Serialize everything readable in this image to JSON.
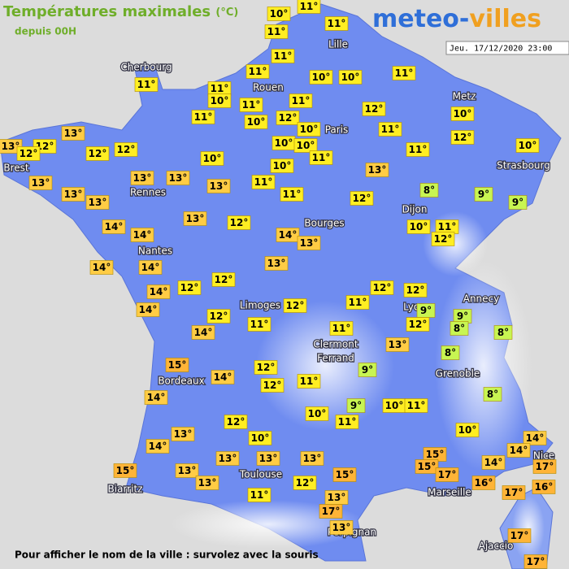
{
  "header": {
    "title": "Températures maximales",
    "unit": "(°C)",
    "subtitle": "depuis 00H"
  },
  "logo": {
    "part1": "meteo-",
    "part2": "villes"
  },
  "timestamp": "Jeu. 17/12/2020 23:00",
  "cities": [
    "Cherbourg",
    "Rouen",
    "Lille",
    "Metz",
    "Paris",
    "Strasbourg",
    "Brest",
    "Rennes",
    "Dijon",
    "Bourges",
    "Nantes",
    "Annecy",
    "Lyon",
    "Limoges",
    "Clermont",
    "Ferrand",
    "Grenoble",
    "Bordeaux",
    "Nice",
    "Toulouse",
    "Biarritz",
    "Marseille",
    "Perpignan",
    "Ajaccio"
  ],
  "temperatures": [
    {
      "value": 11,
      "label": "11°"
    },
    {
      "value": 10,
      "label": "10°"
    },
    {
      "value": 11,
      "label": "11°"
    },
    {
      "value": 11,
      "label": "11°"
    },
    {
      "value": 11,
      "label": "11°"
    },
    {
      "value": 11,
      "label": "11°"
    },
    {
      "value": 10,
      "label": "10°"
    },
    {
      "value": 10,
      "label": "10°"
    },
    {
      "value": 11,
      "label": "11°"
    },
    {
      "value": 11,
      "label": "11°"
    },
    {
      "value": 11,
      "label": "11°"
    },
    {
      "value": 10,
      "label": "10°"
    },
    {
      "value": 11,
      "label": "11°"
    },
    {
      "value": 11,
      "label": "11°"
    },
    {
      "value": 12,
      "label": "12°"
    },
    {
      "value": 10,
      "label": "10°"
    },
    {
      "value": 11,
      "label": "11°"
    },
    {
      "value": 10,
      "label": "10°"
    },
    {
      "value": 12,
      "label": "12°"
    },
    {
      "value": 10,
      "label": "10°"
    },
    {
      "value": 11,
      "label": "11°"
    },
    {
      "value": 12,
      "label": "12°"
    },
    {
      "value": 13,
      "label": "13°"
    },
    {
      "value": 13,
      "label": "13°"
    },
    {
      "value": 12,
      "label": "12°"
    },
    {
      "value": 12,
      "label": "12°"
    },
    {
      "value": 12,
      "label": "12°"
    },
    {
      "value": 12,
      "label": "12°"
    },
    {
      "value": 10,
      "label": "10°"
    },
    {
      "value": 10,
      "label": "10°"
    },
    {
      "value": 11,
      "label": "11°"
    },
    {
      "value": 10,
      "label": "10°"
    },
    {
      "value": 10,
      "label": "10°"
    },
    {
      "value": 11,
      "label": "11°"
    },
    {
      "value": 10,
      "label": "10°"
    },
    {
      "value": 13,
      "label": "13°"
    },
    {
      "value": 13,
      "label": "13°"
    },
    {
      "value": 13,
      "label": "13°"
    },
    {
      "value": 13,
      "label": "13°"
    },
    {
      "value": 13,
      "label": "13°"
    },
    {
      "value": 11,
      "label": "11°"
    },
    {
      "value": 13,
      "label": "13°"
    },
    {
      "value": 13,
      "label": "13°"
    },
    {
      "value": 11,
      "label": "11°"
    },
    {
      "value": 12,
      "label": "12°"
    },
    {
      "value": 8,
      "label": "8°"
    },
    {
      "value": 9,
      "label": "9°"
    },
    {
      "value": 9,
      "label": "9°"
    },
    {
      "value": 13,
      "label": "13°"
    },
    {
      "value": 12,
      "label": "12°"
    },
    {
      "value": 14,
      "label": "14°"
    },
    {
      "value": 14,
      "label": "14°"
    },
    {
      "value": 14,
      "label": "14°"
    },
    {
      "value": 13,
      "label": "13°"
    },
    {
      "value": 10,
      "label": "10°"
    },
    {
      "value": 11,
      "label": "11°"
    },
    {
      "value": 12,
      "label": "12°"
    },
    {
      "value": 14,
      "label": "14°"
    },
    {
      "value": 14,
      "label": "14°"
    },
    {
      "value": 13,
      "label": "13°"
    },
    {
      "value": 14,
      "label": "14°"
    },
    {
      "value": 12,
      "label": "12°"
    },
    {
      "value": 12,
      "label": "12°"
    },
    {
      "value": 12,
      "label": "12°"
    },
    {
      "value": 12,
      "label": "12°"
    },
    {
      "value": 14,
      "label": "14°"
    },
    {
      "value": 12,
      "label": "12°"
    },
    {
      "value": 11,
      "label": "11°"
    },
    {
      "value": 9,
      "label": "9°"
    },
    {
      "value": 9,
      "label": "9°"
    },
    {
      "value": 12,
      "label": "12°"
    },
    {
      "value": 14,
      "label": "14°"
    },
    {
      "value": 11,
      "label": "11°"
    },
    {
      "value": 11,
      "label": "11°"
    },
    {
      "value": 12,
      "label": "12°"
    },
    {
      "value": 8,
      "label": "8°"
    },
    {
      "value": 8,
      "label": "8°"
    },
    {
      "value": 13,
      "label": "13°"
    },
    {
      "value": 8,
      "label": "8°"
    },
    {
      "value": 15,
      "label": "15°"
    },
    {
      "value": 12,
      "label": "12°"
    },
    {
      "value": 9,
      "label": "9°"
    },
    {
      "value": 14,
      "label": "14°"
    },
    {
      "value": 12,
      "label": "12°"
    },
    {
      "value": 11,
      "label": "11°"
    },
    {
      "value": 14,
      "label": "14°"
    },
    {
      "value": 8,
      "label": "8°"
    },
    {
      "value": 9,
      "label": "9°"
    },
    {
      "value": 10,
      "label": "10°"
    },
    {
      "value": 11,
      "label": "11°"
    },
    {
      "value": 10,
      "label": "10°"
    },
    {
      "value": 12,
      "label": "12°"
    },
    {
      "value": 11,
      "label": "11°"
    },
    {
      "value": 10,
      "label": "10°"
    },
    {
      "value": 13,
      "label": "13°"
    },
    {
      "value": 10,
      "label": "10°"
    },
    {
      "value": 14,
      "label": "14°"
    },
    {
      "value": 14,
      "label": "14°"
    },
    {
      "value": 14,
      "label": "14°"
    },
    {
      "value": 15,
      "label": "15°"
    },
    {
      "value": 13,
      "label": "13°"
    },
    {
      "value": 13,
      "label": "13°"
    },
    {
      "value": 13,
      "label": "13°"
    },
    {
      "value": 14,
      "label": "14°"
    },
    {
      "value": 15,
      "label": "15°"
    },
    {
      "value": 17,
      "label": "17°"
    },
    {
      "value": 17,
      "label": "17°"
    },
    {
      "value": 15,
      "label": "15°"
    },
    {
      "value": 13,
      "label": "13°"
    },
    {
      "value": 15,
      "label": "15°"
    },
    {
      "value": 16,
      "label": "16°"
    },
    {
      "value": 16,
      "label": "16°"
    },
    {
      "value": 13,
      "label": "13°"
    },
    {
      "value": 12,
      "label": "12°"
    },
    {
      "value": 17,
      "label": "17°"
    },
    {
      "value": 11,
      "label": "11°"
    },
    {
      "value": 13,
      "label": "13°"
    },
    {
      "value": 17,
      "label": "17°"
    },
    {
      "value": 13,
      "label": "13°"
    },
    {
      "value": 17,
      "label": "17°"
    },
    {
      "value": 17,
      "label": "17°"
    }
  ],
  "footer": "Pour afficher le nom de la ville : survolez avec la souris"
}
